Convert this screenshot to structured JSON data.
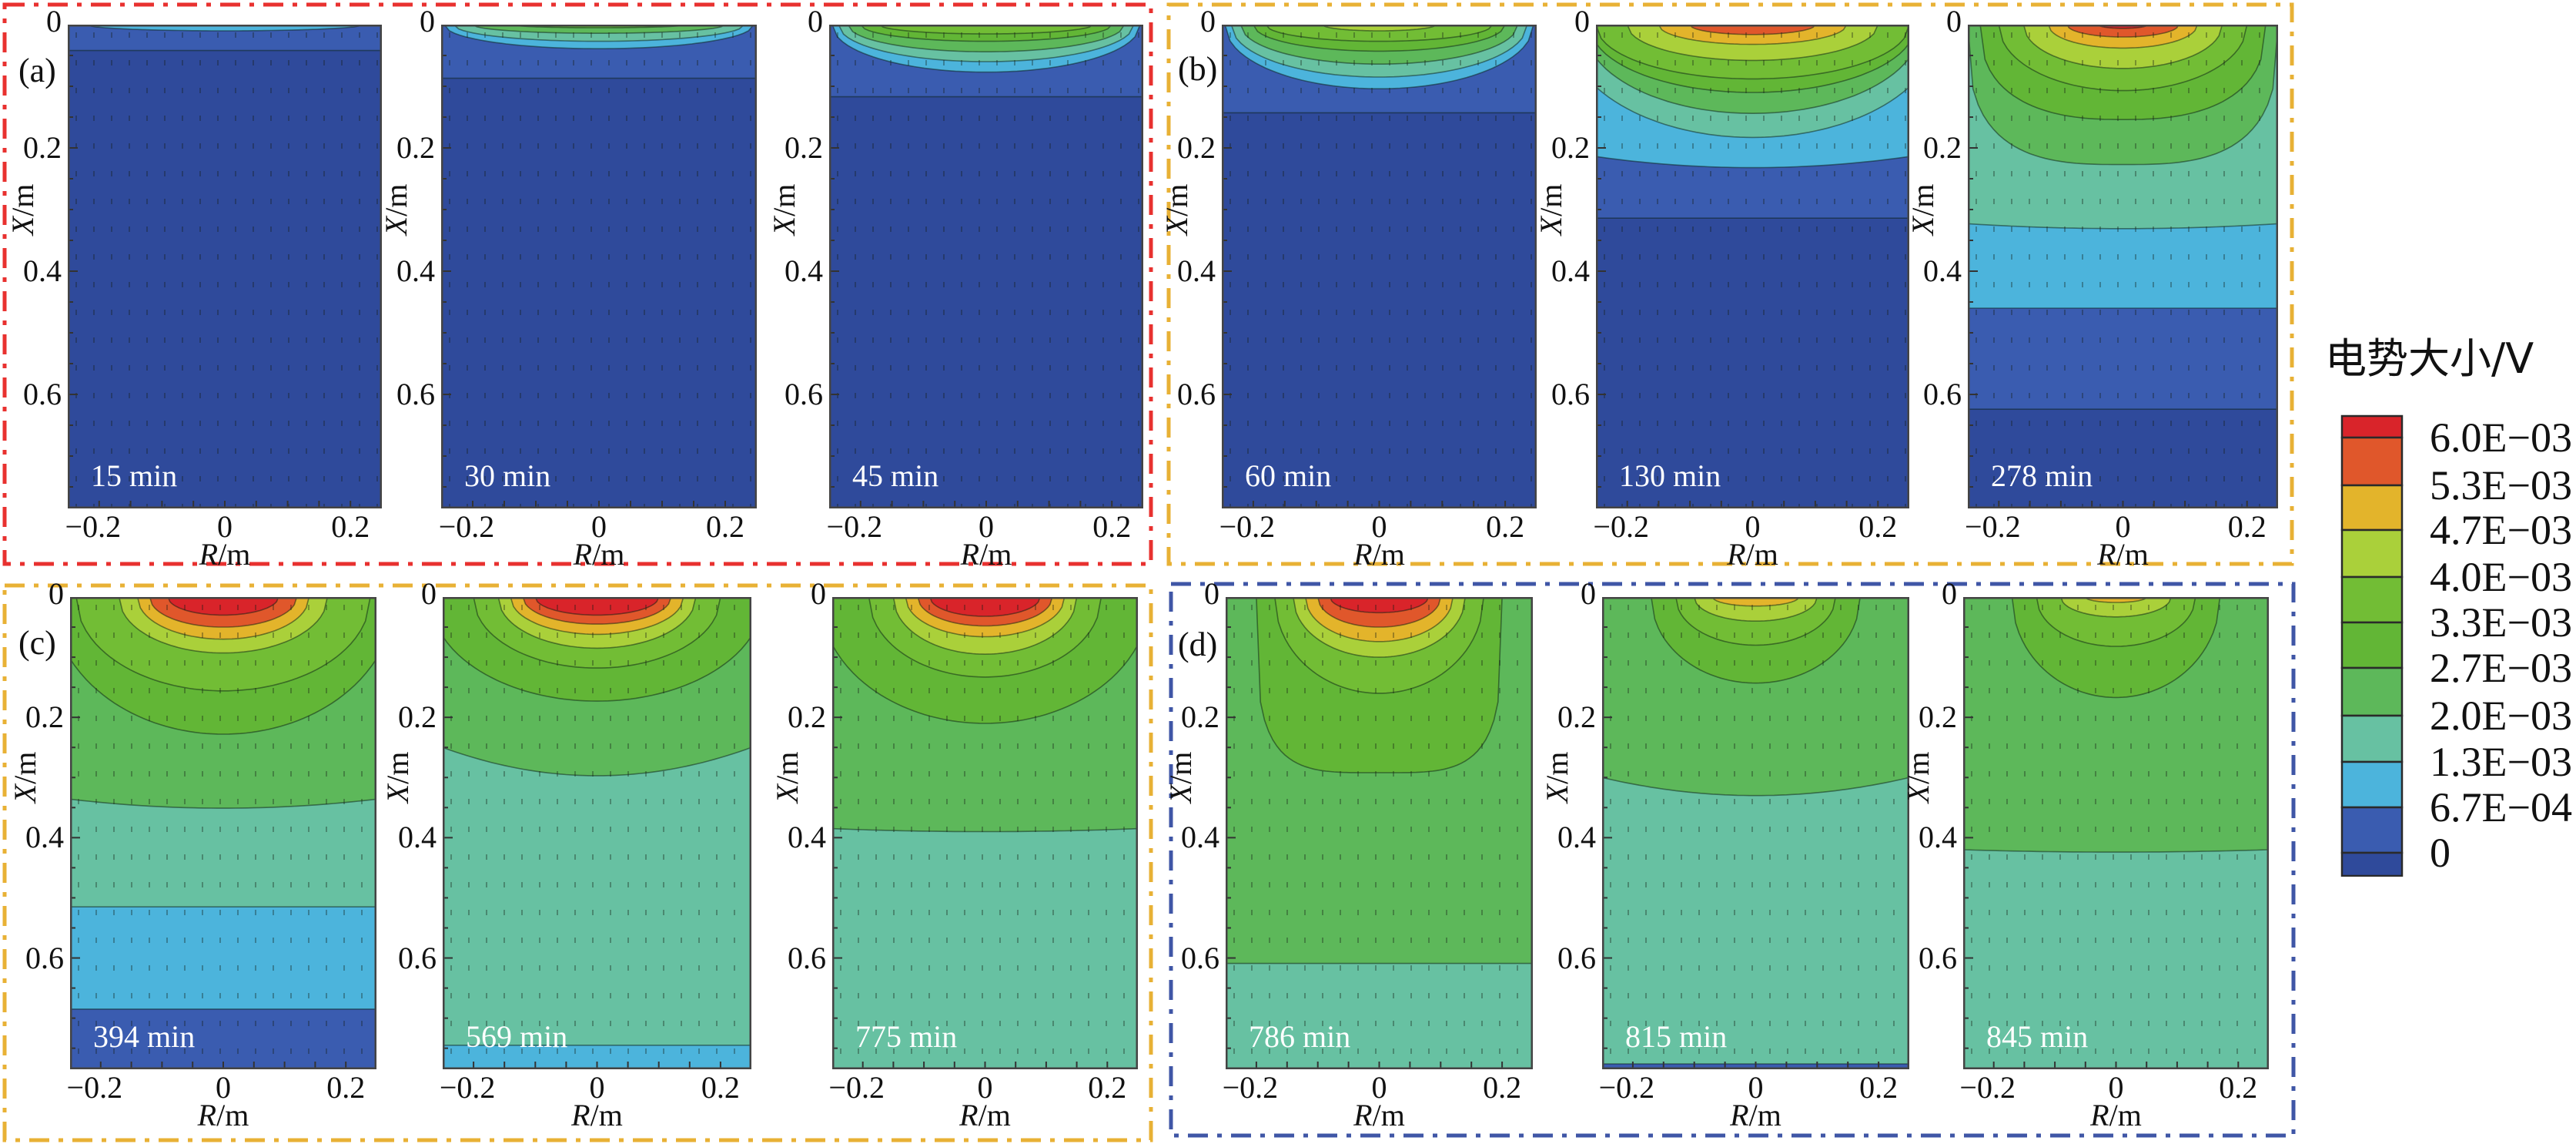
{
  "chart_data": {
    "type": "heatmap",
    "subtype": "filled-contour panels",
    "colorbar": {
      "title": "电势大小/V",
      "labels_top_to_bottom": [
        "6.0E−03",
        "5.3E−03",
        "4.7E−03",
        "4.0E−03",
        "3.3E−03",
        "2.7E−03",
        "2.0E−03",
        "1.3E−03",
        "6.7E−04",
        "0"
      ],
      "level_colors_bottom_to_top": [
        "#2f4a9b",
        "#3a5cb0",
        "#4cb4dc",
        "#67c1a2",
        "#5db85a",
        "#62b636",
        "#72bd35",
        "#aad03a",
        "#e3b42b",
        "#e0572b",
        "#d9242a"
      ]
    },
    "axes": {
      "xlabel_var": "R",
      "xlabel_unit": "/m",
      "ylabel_var": "X",
      "ylabel_unit": "/m",
      "xlim": [
        -0.25,
        0.25
      ],
      "ylim": [
        0,
        0.785
      ],
      "y_inverted": true,
      "x_ticks": [
        "−0.2",
        "0",
        "0.2"
      ],
      "x_tick_values": [
        -0.2,
        0,
        0.2
      ],
      "y_ticks": [
        "0",
        "0.2",
        "0.4",
        "0.6"
      ],
      "y_tick_values": [
        0,
        0.2,
        0.4,
        0.6
      ]
    },
    "groups": [
      {
        "label": "(a)",
        "frame_color": "#e8312f"
      },
      {
        "label": "(b)",
        "frame_color": "#e8b135"
      },
      {
        "label": "(c)",
        "frame_color": "#e8b135"
      },
      {
        "label": "(d)",
        "frame_color": "#3f56a6"
      }
    ],
    "panels": [
      {
        "time": "15 min",
        "group": 0,
        "base": 0,
        "bands": [
          {
            "level": 1,
            "dc": 0.042,
            "de": 0.042
          },
          {
            "level": 2,
            "dc": 0.01,
            "hw": 0.22
          }
        ]
      },
      {
        "time": "30 min",
        "group": 0,
        "base": 0,
        "bands": [
          {
            "level": 1,
            "dc": 0.087,
            "de": 0.087
          },
          {
            "level": 2,
            "dc": 0.039,
            "hw": 0.245
          },
          {
            "level": 3,
            "dc": 0.027,
            "hw": 0.23
          },
          {
            "level": 4,
            "dc": 0.014,
            "hw": 0.2
          },
          {
            "level": 5,
            "dc": 0.005,
            "hw": 0.14
          }
        ]
      },
      {
        "time": "45 min",
        "group": 0,
        "base": 0,
        "bands": [
          {
            "level": 1,
            "dc": 0.117,
            "de": 0.117
          },
          {
            "level": 2,
            "dc": 0.077,
            "hw": 0.245
          },
          {
            "level": 3,
            "dc": 0.06,
            "hw": 0.235
          },
          {
            "level": 4,
            "dc": 0.044,
            "hw": 0.22
          },
          {
            "level": 5,
            "dc": 0.027,
            "hw": 0.2
          },
          {
            "level": 6,
            "dc": 0.015,
            "hw": 0.17
          }
        ]
      },
      {
        "time": "60 min",
        "group": 1,
        "base": 0,
        "bands": [
          {
            "level": 1,
            "dc": 0.143,
            "de": 0.143
          },
          {
            "level": 2,
            "dc": 0.104,
            "hw": 0.245
          },
          {
            "level": 3,
            "dc": 0.085,
            "hw": 0.235
          },
          {
            "level": 4,
            "dc": 0.064,
            "hw": 0.22
          },
          {
            "level": 5,
            "dc": 0.043,
            "hw": 0.2
          },
          {
            "level": 6,
            "dc": 0.027,
            "hw": 0.18
          },
          {
            "level": 7,
            "dc": 0.01,
            "hw": 0.09
          }
        ]
      },
      {
        "time": "130 min",
        "group": 1,
        "base": 0,
        "bands": [
          {
            "level": 1,
            "dc": 0.314,
            "de": 0.314
          },
          {
            "level": 2,
            "dc": 0.232,
            "de": 0.214
          },
          {
            "level": 3,
            "dc": 0.183,
            "hw": 0.3
          },
          {
            "level": 4,
            "dc": 0.144,
            "hw": 0.27
          },
          {
            "level": 5,
            "dc": 0.11,
            "hw": 0.26
          },
          {
            "level": 6,
            "dc": 0.088,
            "hw": 0.25
          },
          {
            "level": 7,
            "dc": 0.058,
            "hw": 0.2
          },
          {
            "level": 8,
            "dc": 0.032,
            "hw": 0.15
          },
          {
            "level": 9,
            "dc": 0.016,
            "hw": 0.1
          }
        ]
      },
      {
        "time": "278 min",
        "group": 1,
        "base": 0,
        "bands": [
          {
            "level": 1,
            "dc": 0.624,
            "de": 0.624
          },
          {
            "level": 2,
            "dc": 0.46,
            "de": 0.46
          },
          {
            "level": 3,
            "dc": 0.331,
            "de": 0.323
          },
          {
            "level": 4,
            "dc": 0.227,
            "hw": 0.25,
            "p": 3
          },
          {
            "level": 5,
            "dc": 0.154,
            "hw": 0.23,
            "p": 2.5
          },
          {
            "level": 6,
            "dc": 0.107,
            "hw": 0.2
          },
          {
            "level": 7,
            "dc": 0.071,
            "hw": 0.16
          },
          {
            "level": 8,
            "dc": 0.038,
            "hw": 0.12
          },
          {
            "level": 9,
            "dc": 0.02,
            "hw": 0.09
          },
          {
            "level": 10,
            "dc": 0.006,
            "hw": 0.04
          }
        ]
      },
      {
        "time": "394 min",
        "group": 2,
        "base": 1,
        "bands": [
          {
            "level": 2,
            "dc": 0.685,
            "de": 0.685
          },
          {
            "level": 3,
            "dc": 0.515,
            "de": 0.515
          },
          {
            "level": 4,
            "dc": 0.351,
            "de": 0.336
          },
          {
            "level": 5,
            "dc": 0.228,
            "hw": 0.28
          },
          {
            "level": 6,
            "dc": 0.156,
            "hw": 0.24
          },
          {
            "level": 7,
            "dc": 0.093,
            "hw": 0.17
          },
          {
            "level": 8,
            "dc": 0.07,
            "hw": 0.14
          },
          {
            "level": 9,
            "dc": 0.05,
            "hw": 0.12
          },
          {
            "level": 10,
            "dc": 0.03,
            "hw": 0.09
          }
        ]
      },
      {
        "time": "569 min",
        "group": 2,
        "base": 2,
        "bands": [
          {
            "level": 3,
            "dc": 0.745,
            "de": 0.745
          },
          {
            "level": 4,
            "dc": 0.297,
            "de": 0.25
          },
          {
            "level": 5,
            "dc": 0.173,
            "hw": 0.27
          },
          {
            "level": 6,
            "dc": 0.118,
            "hw": 0.2
          },
          {
            "level": 7,
            "dc": 0.085,
            "hw": 0.16
          },
          {
            "level": 8,
            "dc": 0.062,
            "hw": 0.14
          },
          {
            "level": 9,
            "dc": 0.045,
            "hw": 0.12
          },
          {
            "level": 10,
            "dc": 0.03,
            "hw": 0.1
          }
        ]
      },
      {
        "time": "775 min",
        "group": 2,
        "base": 3,
        "bands": [
          {
            "level": 4,
            "dc": 0.39,
            "de": 0.385
          },
          {
            "level": 5,
            "dc": 0.21,
            "hw": 0.27
          },
          {
            "level": 6,
            "dc": 0.133,
            "hw": 0.19
          },
          {
            "level": 7,
            "dc": 0.095,
            "hw": 0.15
          },
          {
            "level": 8,
            "dc": 0.066,
            "hw": 0.13
          },
          {
            "level": 9,
            "dc": 0.048,
            "hw": 0.11
          },
          {
            "level": 10,
            "dc": 0.032,
            "hw": 0.09
          }
        ]
      },
      {
        "time": "786 min",
        "group": 3,
        "base": 3,
        "bands": [
          {
            "level": 4,
            "dc": 0.609,
            "de": 0.609
          },
          {
            "level": 5,
            "dc": 0.292,
            "hw": 0.2,
            "p": 4
          },
          {
            "level": 6,
            "dc": 0.16,
            "hw": 0.17
          },
          {
            "level": 7,
            "dc": 0.1,
            "hw": 0.14
          },
          {
            "level": 8,
            "dc": 0.074,
            "hw": 0.12
          },
          {
            "level": 9,
            "dc": 0.05,
            "hw": 0.1
          },
          {
            "level": 10,
            "dc": 0.026,
            "hw": 0.08
          }
        ]
      },
      {
        "time": "815 min",
        "group": 3,
        "base": 1,
        "bands": [
          {
            "level": 3,
            "dc": 0.776,
            "de": 0.776
          },
          {
            "level": 4,
            "dc": 0.33,
            "de": 0.3
          },
          {
            "level": 5,
            "dc": 0.143,
            "hw": 0.17
          },
          {
            "level": 6,
            "dc": 0.08,
            "hw": 0.13
          },
          {
            "level": 7,
            "dc": 0.04,
            "hw": 0.1
          },
          {
            "level": 8,
            "dc": 0.015,
            "hw": 0.07
          }
        ]
      },
      {
        "time": "845 min",
        "group": 3,
        "base": 3,
        "bands": [
          {
            "level": 4,
            "dc": 0.424,
            "de": 0.42
          },
          {
            "level": 5,
            "dc": 0.167,
            "hw": 0.17
          },
          {
            "level": 6,
            "dc": 0.082,
            "hw": 0.13
          },
          {
            "level": 7,
            "dc": 0.033,
            "hw": 0.09
          },
          {
            "level": 8,
            "dc": 0.009,
            "hw": 0.05
          }
        ]
      }
    ]
  }
}
